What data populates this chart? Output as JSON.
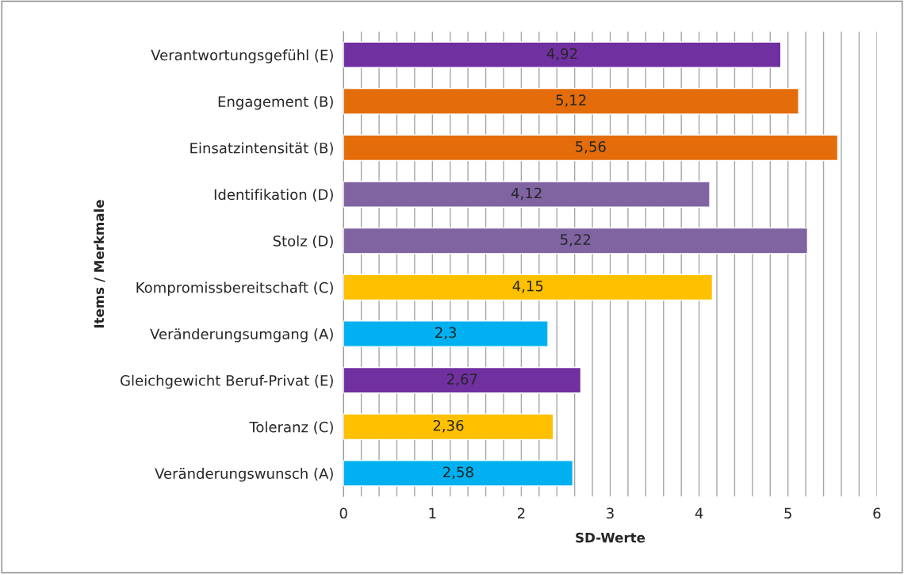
{
  "chart_data": {
    "type": "bar",
    "orientation": "horizontal",
    "xlabel": "SD-Werte",
    "ylabel": "Items / Merkmale",
    "categories": [
      "Verantwortungsgefühl (E)",
      "Engagement (B)",
      "Einsatzintensität (B)",
      "Identifikation (D)",
      "Stolz (D)",
      "Kompromissbereitschaft (C)",
      "Veränderungsumgang (A)",
      "Gleichgewicht Beruf-Privat (E)",
      "Toleranz (C)",
      "Veränderungswunsch (A)"
    ],
    "values": [
      4.92,
      5.12,
      5.56,
      4.12,
      5.22,
      4.15,
      2.3,
      2.67,
      2.36,
      2.58
    ],
    "colors": [
      "#7030a0",
      "#e46c0a",
      "#e46c0a",
      "#8064a2",
      "#8064a2",
      "#ffc000",
      "#00b0f0",
      "#7030a0",
      "#ffc000",
      "#00b0f0"
    ],
    "value_labels": [
      "4,92",
      "5,12",
      "5,56",
      "4,12",
      "5,22",
      "4,15",
      "2,3",
      "2,67",
      "2,36",
      "2,58"
    ],
    "xlim": [
      0,
      6
    ],
    "xticks": [
      0,
      {
        "value": 0.2,
        "label": null
      },
      {
        "value": 0.4,
        "label": null
      },
      {
        "value": 0.6,
        "label": null
      },
      {
        "value": 0.8,
        "label": null
      },
      1,
      {
        "value": 1.2,
        "label": null
      },
      {
        "value": 1.4,
        "label": null
      },
      {
        "value": 1.6,
        "label": null
      },
      {
        "value": 1.8,
        "label": null
      },
      2,
      {
        "value": 2.2,
        "label": null
      },
      {
        "value": 2.4,
        "label": null
      },
      {
        "value": 2.6,
        "label": null
      },
      {
        "value": 2.8,
        "label": null
      },
      3,
      {
        "value": 3.2,
        "label": null
      },
      {
        "value": 3.4,
        "label": null
      },
      {
        "value": 3.6,
        "label": null
      },
      {
        "value": 3.8,
        "label": null
      },
      4,
      {
        "value": 4.2,
        "label": null
      },
      {
        "value": 4.4,
        "label": null
      },
      {
        "value": 4.6,
        "label": null
      },
      {
        "value": 4.8,
        "label": null
      },
      5,
      {
        "value": 5.2,
        "label": null
      },
      {
        "value": 5.4,
        "label": null
      },
      {
        "value": 5.6,
        "label": null
      },
      {
        "value": 5.8,
        "label": null
      },
      6
    ],
    "grid": "x"
  }
}
